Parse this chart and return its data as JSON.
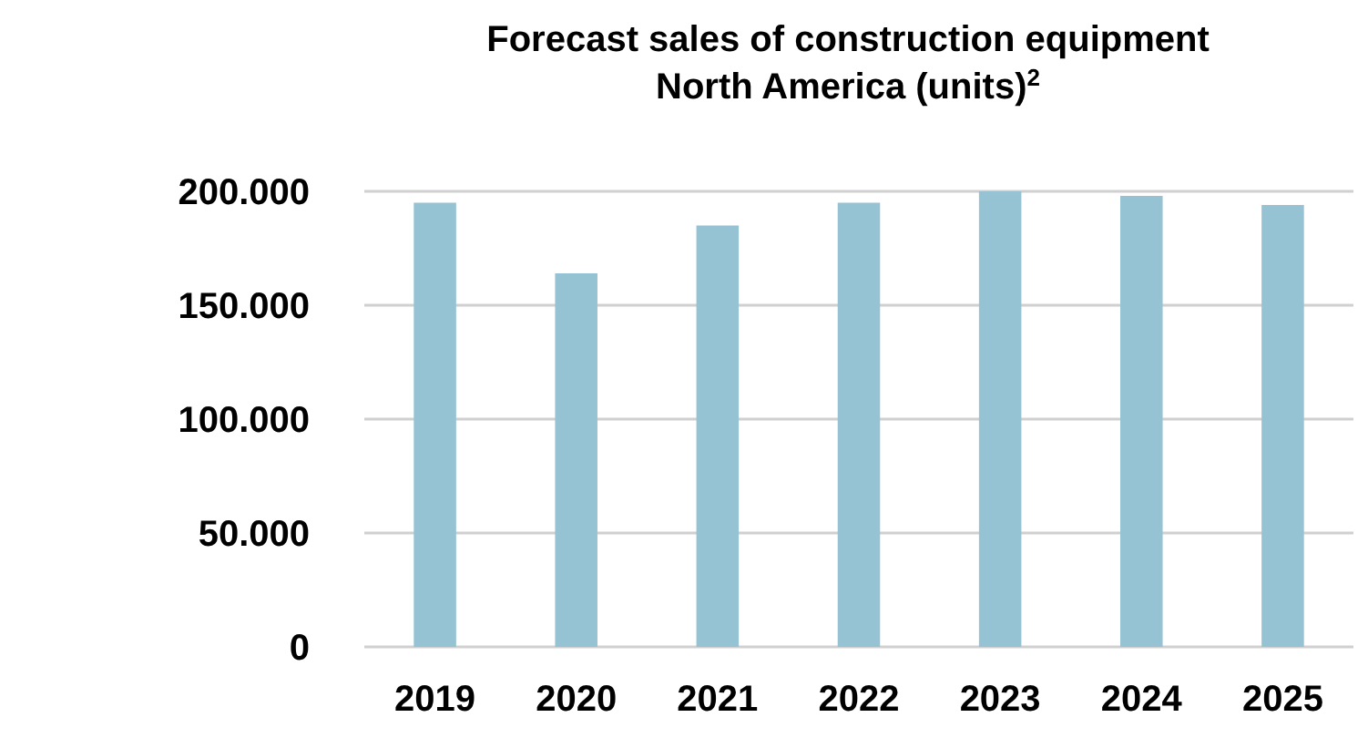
{
  "chart_data": {
    "type": "bar",
    "title": "Forecast sales of construction equipment North America (units)$^{2}$",
    "categories": [
      "2019",
      "2020",
      "2021",
      "2022",
      "2023",
      "2024",
      "2025"
    ],
    "values": [
      195000,
      164000,
      185000,
      195000,
      200000,
      198000,
      194000
    ],
    "color": "#96c3d4",
    "ylim": [
      0,
      200000
    ],
    "yticks": [
      {
        "value": 0,
        "label": "0"
      },
      {
        "value": 50000,
        "label": "50.000"
      },
      {
        "value": 100000,
        "label": "100.000"
      },
      {
        "value": 150000,
        "label": "150.000"
      },
      {
        "value": 200000,
        "label": "200.000"
      }
    ],
    "grid": "y"
  }
}
